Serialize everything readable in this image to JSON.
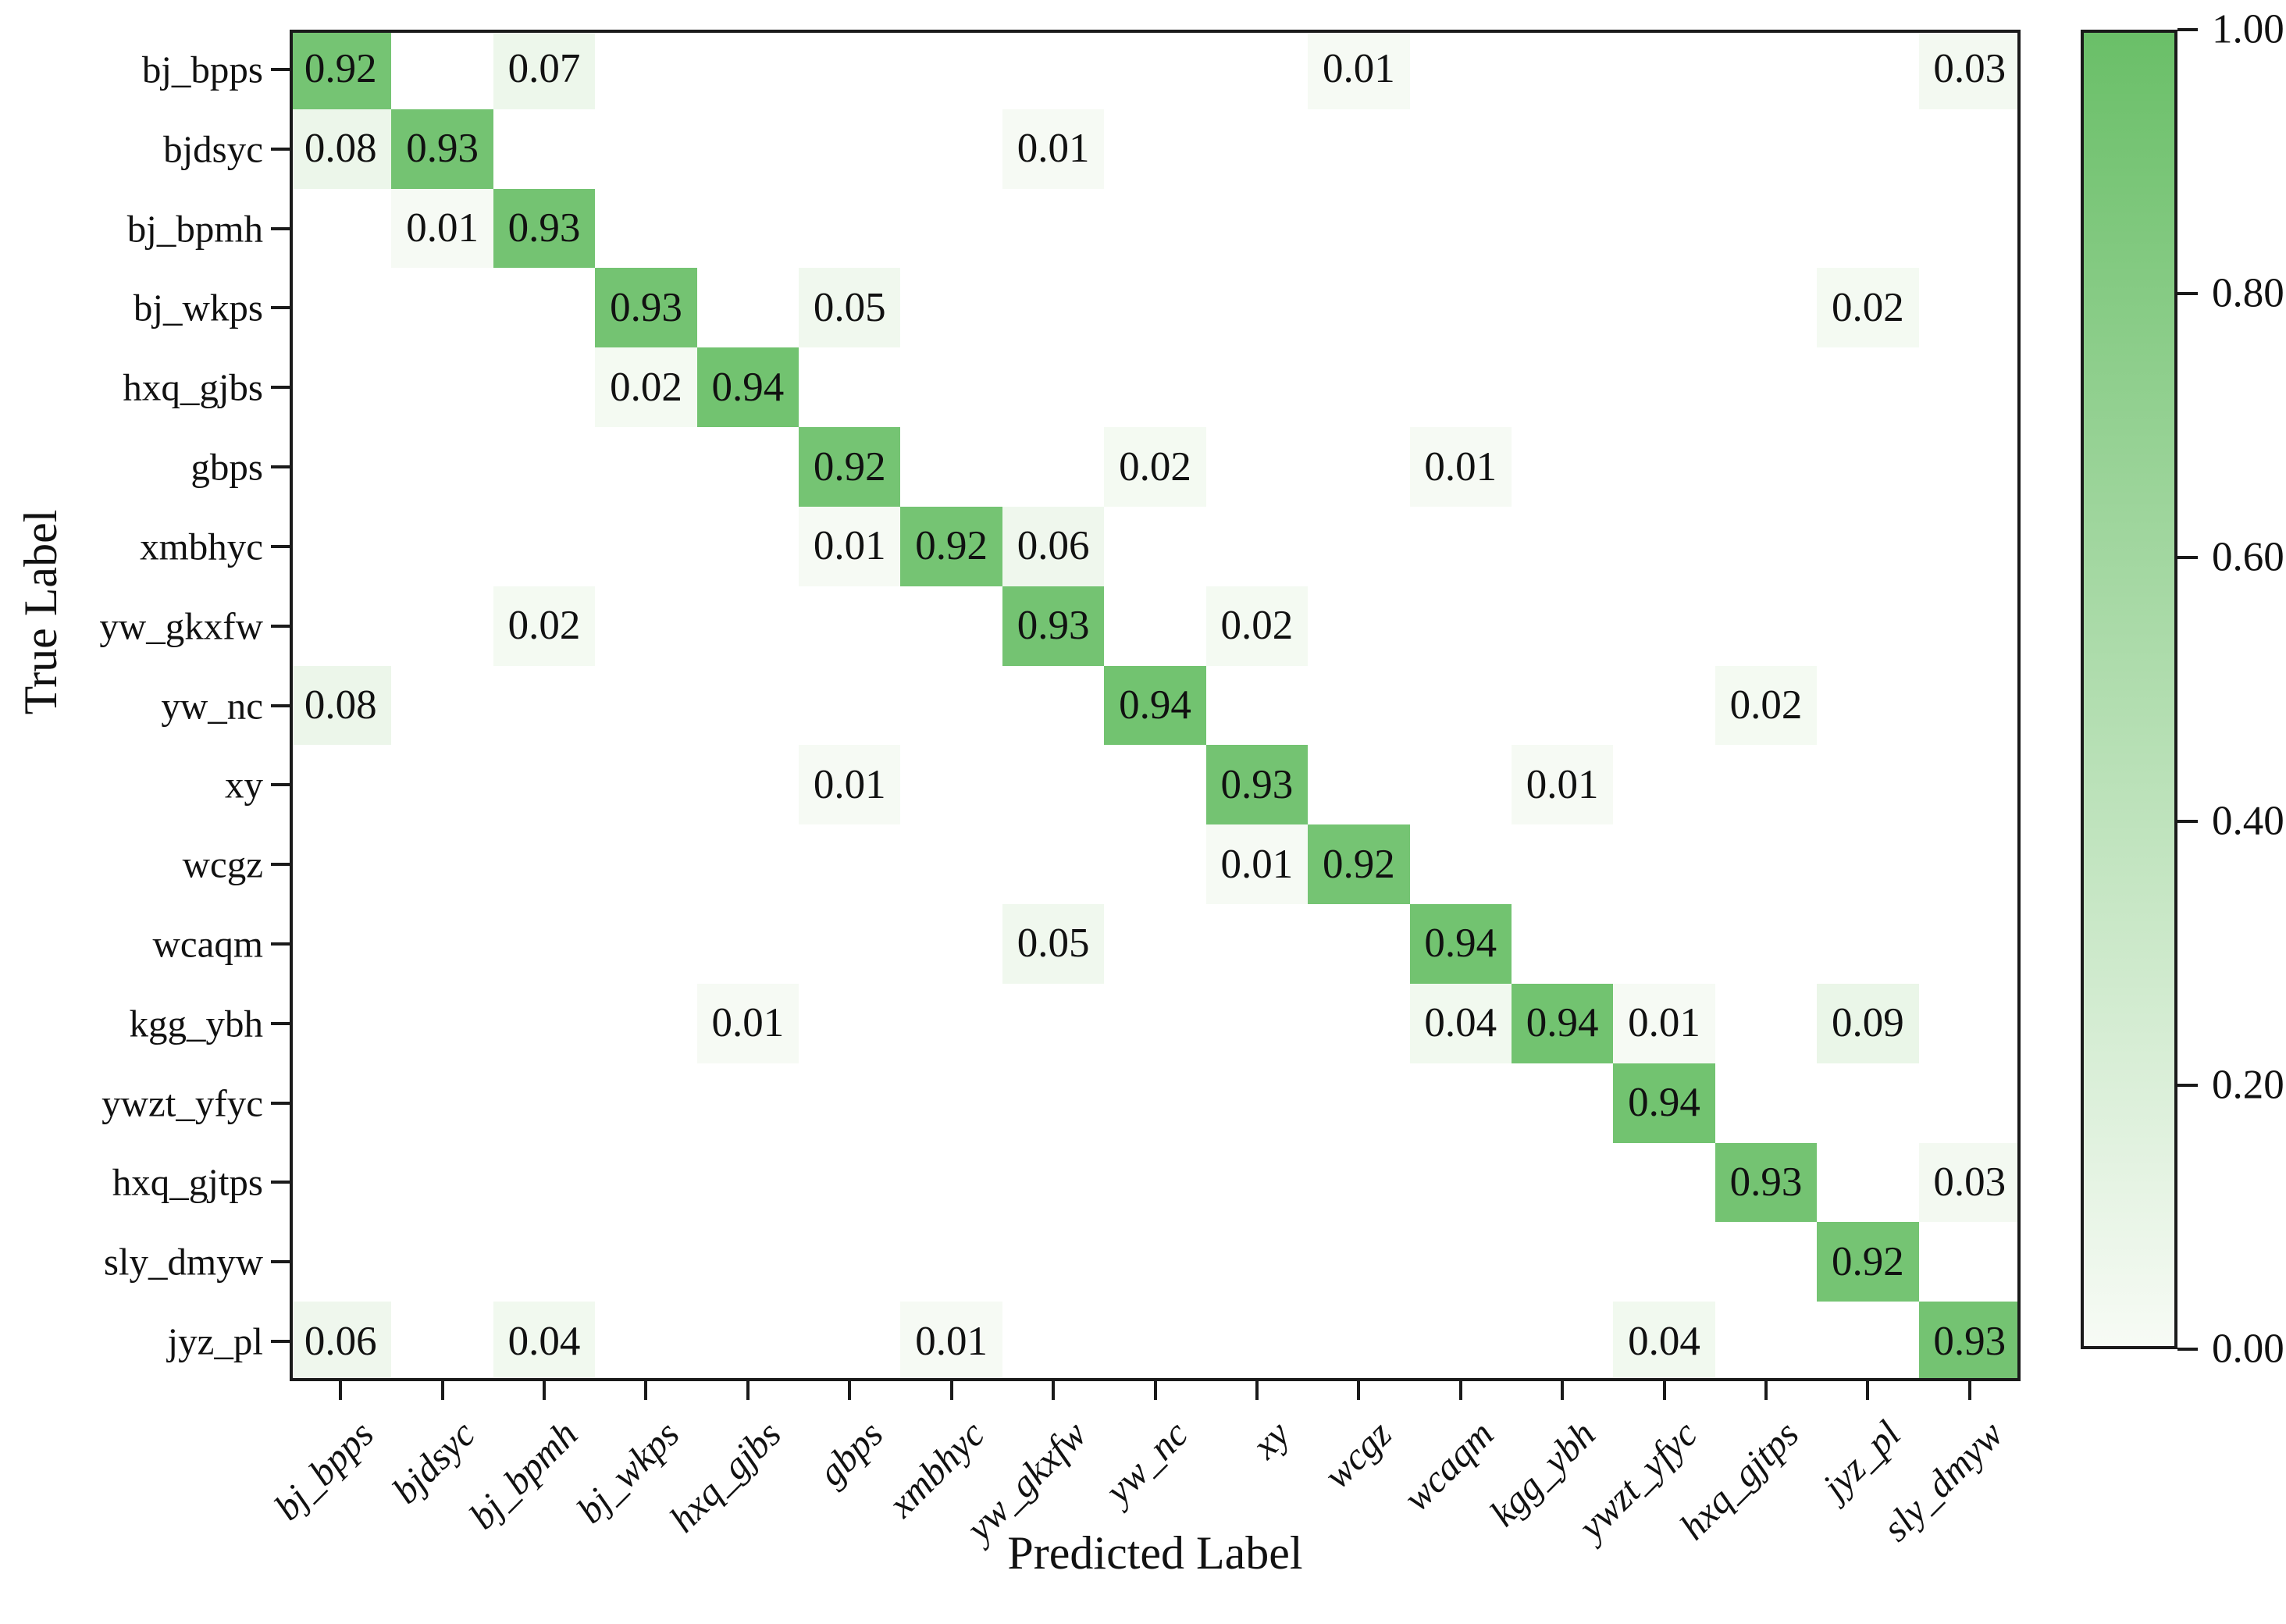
{
  "chart_data": {
    "type": "heatmap",
    "title": "",
    "xlabel": "Predicted Label",
    "ylabel": "True Label",
    "x_labels": [
      "bj_bpps",
      "bjdsyc",
      "bj_bpmh",
      "bj_wkps",
      "hxq_gjbs",
      "gbps",
      "xmbhyc",
      "yw_gkxfw",
      "yw_nc",
      "xy",
      "wcgz",
      "wcaqm",
      "kgg_ybh",
      "ywzt_yfyc",
      "hxq_gjtps",
      "jyz_pl",
      "sly_dmyw"
    ],
    "y_labels": [
      "bj_bpps",
      "bjdsyc",
      "bj_bpmh",
      "bj_wkps",
      "hxq_gjbs",
      "gbps",
      "xmbhyc",
      "yw_gkxfw",
      "yw_nc",
      "xy",
      "wcgz",
      "wcaqm",
      "kgg_ybh",
      "ywzt_yfyc",
      "hxq_gjtps",
      "sly_dmyw",
      "jyz_pl"
    ],
    "matrix": [
      [
        0.92,
        null,
        0.07,
        null,
        null,
        null,
        null,
        null,
        null,
        null,
        0.01,
        null,
        null,
        null,
        null,
        null,
        0.03
      ],
      [
        0.08,
        0.93,
        null,
        null,
        null,
        null,
        null,
        0.01,
        null,
        null,
        null,
        null,
        null,
        null,
        null,
        null,
        null
      ],
      [
        null,
        0.01,
        0.93,
        null,
        null,
        null,
        null,
        null,
        null,
        null,
        null,
        null,
        null,
        null,
        null,
        null,
        null
      ],
      [
        null,
        null,
        null,
        0.93,
        null,
        0.05,
        null,
        null,
        null,
        null,
        null,
        null,
        null,
        null,
        null,
        0.02,
        null
      ],
      [
        null,
        null,
        null,
        0.02,
        0.94,
        null,
        null,
        null,
        null,
        null,
        null,
        null,
        null,
        null,
        null,
        null,
        null
      ],
      [
        null,
        null,
        null,
        null,
        null,
        0.92,
        null,
        null,
        0.02,
        null,
        null,
        0.01,
        null,
        null,
        null,
        null,
        null
      ],
      [
        null,
        null,
        null,
        null,
        null,
        0.01,
        0.92,
        0.06,
        null,
        null,
        null,
        null,
        null,
        null,
        null,
        null,
        null
      ],
      [
        null,
        null,
        0.02,
        null,
        null,
        null,
        null,
        0.93,
        null,
        0.02,
        null,
        null,
        null,
        null,
        null,
        null,
        null
      ],
      [
        0.08,
        null,
        null,
        null,
        null,
        null,
        null,
        null,
        0.94,
        null,
        null,
        null,
        null,
        null,
        0.02,
        null,
        null
      ],
      [
        null,
        null,
        null,
        null,
        null,
        0.01,
        null,
        null,
        null,
        0.93,
        null,
        null,
        0.01,
        null,
        null,
        null,
        null
      ],
      [
        null,
        null,
        null,
        null,
        null,
        null,
        null,
        null,
        null,
        0.01,
        0.92,
        null,
        null,
        null,
        null,
        null,
        null
      ],
      [
        null,
        null,
        null,
        null,
        null,
        null,
        null,
        0.05,
        null,
        null,
        null,
        0.94,
        null,
        null,
        null,
        null,
        null
      ],
      [
        null,
        null,
        null,
        null,
        0.01,
        null,
        null,
        null,
        null,
        null,
        null,
        0.04,
        0.94,
        0.01,
        null,
        0.09,
        null
      ],
      [
        null,
        null,
        null,
        null,
        null,
        null,
        null,
        null,
        null,
        null,
        null,
        null,
        null,
        0.94,
        null,
        null,
        null
      ],
      [
        null,
        null,
        null,
        null,
        null,
        null,
        null,
        null,
        null,
        null,
        null,
        null,
        null,
        null,
        0.93,
        null,
        0.03
      ],
      [
        null,
        null,
        null,
        null,
        null,
        null,
        null,
        null,
        null,
        null,
        null,
        null,
        null,
        null,
        null,
        0.92,
        null
      ],
      [
        0.06,
        null,
        0.04,
        null,
        null,
        null,
        0.01,
        null,
        null,
        null,
        null,
        null,
        null,
        0.04,
        null,
        null,
        0.93
      ]
    ],
    "value_decimals": 2,
    "colorbar": {
      "tick_labels": [
        "1.00",
        "0.80",
        "0.60",
        "0.40",
        "0.20",
        "0.00"
      ],
      "vmin": 0.0,
      "vmax": 1.0,
      "position": "right"
    },
    "colors": {
      "cmap_low": "#f7fbf5",
      "cmap_high": "#6abf68",
      "cell_text": "#111111",
      "frame": "#1a1a1a"
    },
    "grid": false
  }
}
